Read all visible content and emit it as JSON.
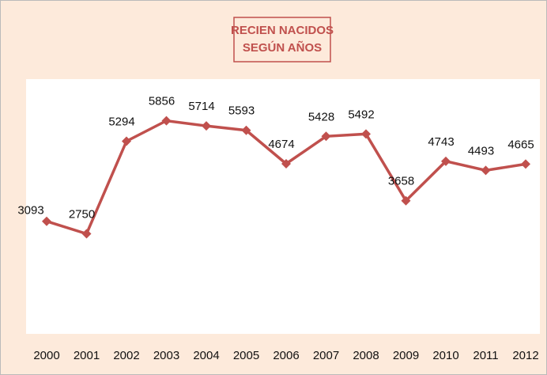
{
  "chart_data": {
    "type": "line",
    "title": "RECIEN NACIDOS SEGÚN AÑOS",
    "categories": [
      "2000",
      "2001",
      "2002",
      "2003",
      "2004",
      "2005",
      "2006",
      "2007",
      "2008",
      "2009",
      "2010",
      "2011",
      "2012"
    ],
    "series": [
      {
        "name": "Recien nacidos",
        "color": "#c0504d",
        "values": [
          3093,
          2750,
          5294,
          5856,
          5714,
          5593,
          4674,
          5428,
          5492,
          3658,
          4743,
          4493,
          4665
        ]
      }
    ],
    "ylim": [
      0,
      7000
    ]
  }
}
